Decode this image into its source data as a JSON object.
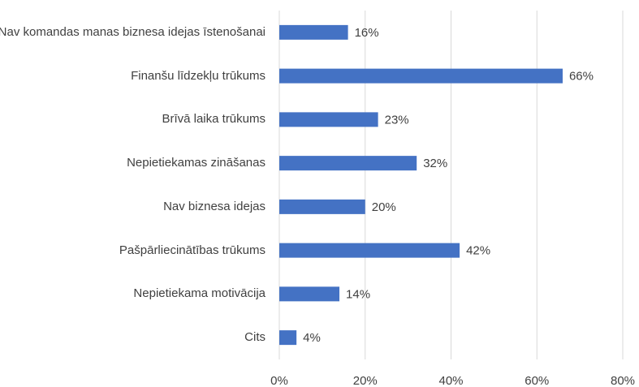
{
  "chart_data": {
    "type": "bar",
    "orientation": "horizontal",
    "categories": [
      "Nav komandas manas biznesa idejas īstenošanai",
      "Finanšu līdzekļu trūkums",
      "Brīvā laika trūkums",
      "Nepietiekamas zināšanas",
      "Nav biznesa idejas",
      "Pašpārliecinātības trūkums",
      "Nepietiekama motivācija",
      "Cits"
    ],
    "values": [
      16,
      66,
      23,
      32,
      20,
      42,
      14,
      4
    ],
    "value_labels": [
      "16%",
      "66%",
      "23%",
      "32%",
      "20%",
      "42%",
      "14%",
      "4%"
    ],
    "color": "#4472c4",
    "xlim": [
      0,
      80
    ],
    "xticks": [
      {
        "value": 0,
        "label": "0%"
      },
      {
        "value": 20,
        "label": "20%"
      },
      {
        "value": 40,
        "label": "40%"
      },
      {
        "value": 60,
        "label": "60%"
      },
      {
        "value": 80,
        "label": "80%"
      }
    ],
    "grid": true
  }
}
